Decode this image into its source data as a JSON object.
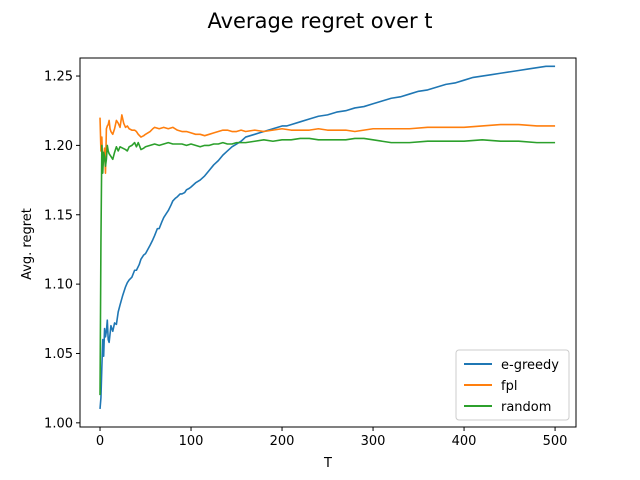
{
  "chart_data": {
    "type": "line",
    "title": "Average regret over t",
    "xlabel": "T",
    "ylabel": "Avg. regret",
    "xlim": [
      -22,
      523
    ],
    "ylim": [
      0.997,
      1.263
    ],
    "xticks": [
      0,
      100,
      200,
      300,
      400,
      500
    ],
    "xtick_labels": [
      "0",
      "100",
      "200",
      "300",
      "400",
      "500"
    ],
    "yticks": [
      1.0,
      1.05,
      1.1,
      1.15,
      1.2,
      1.25
    ],
    "ytick_labels": [
      "1.00",
      "1.05",
      "1.10",
      "1.15",
      "1.20",
      "1.25"
    ],
    "grid": false,
    "legend_position": "lower-right",
    "series": [
      {
        "name": "e-greedy",
        "color": "#1f77b4",
        "points": [
          [
            0,
            1.01
          ],
          [
            1,
            1.018
          ],
          [
            2,
            1.04
          ],
          [
            3,
            1.06
          ],
          [
            4,
            1.048
          ],
          [
            5,
            1.068
          ],
          [
            6,
            1.062
          ],
          [
            7,
            1.066
          ],
          [
            8,
            1.074
          ],
          [
            9,
            1.06
          ],
          [
            10,
            1.058
          ],
          [
            12,
            1.07
          ],
          [
            14,
            1.066
          ],
          [
            16,
            1.072
          ],
          [
            18,
            1.071
          ],
          [
            20,
            1.08
          ],
          [
            22,
            1.085
          ],
          [
            25,
            1.092
          ],
          [
            28,
            1.098
          ],
          [
            30,
            1.101
          ],
          [
            32,
            1.103
          ],
          [
            35,
            1.105
          ],
          [
            38,
            1.11
          ],
          [
            40,
            1.11
          ],
          [
            43,
            1.114
          ],
          [
            45,
            1.118
          ],
          [
            48,
            1.121
          ],
          [
            50,
            1.122
          ],
          [
            55,
            1.128
          ],
          [
            58,
            1.132
          ],
          [
            60,
            1.135
          ],
          [
            63,
            1.14
          ],
          [
            65,
            1.14
          ],
          [
            68,
            1.145
          ],
          [
            70,
            1.148
          ],
          [
            73,
            1.151
          ],
          [
            75,
            1.153
          ],
          [
            78,
            1.157
          ],
          [
            80,
            1.16
          ],
          [
            83,
            1.162
          ],
          [
            85,
            1.163
          ],
          [
            88,
            1.165
          ],
          [
            90,
            1.165
          ],
          [
            93,
            1.166
          ],
          [
            95,
            1.168
          ],
          [
            98,
            1.169
          ],
          [
            100,
            1.17
          ],
          [
            105,
            1.173
          ],
          [
            110,
            1.175
          ],
          [
            115,
            1.178
          ],
          [
            120,
            1.182
          ],
          [
            125,
            1.186
          ],
          [
            130,
            1.189
          ],
          [
            135,
            1.193
          ],
          [
            140,
            1.196
          ],
          [
            145,
            1.199
          ],
          [
            150,
            1.201
          ],
          [
            155,
            1.203
          ],
          [
            160,
            1.206
          ],
          [
            165,
            1.207
          ],
          [
            170,
            1.208
          ],
          [
            175,
            1.209
          ],
          [
            180,
            1.21
          ],
          [
            185,
            1.211
          ],
          [
            190,
            1.212
          ],
          [
            195,
            1.213
          ],
          [
            200,
            1.214
          ],
          [
            205,
            1.214
          ],
          [
            210,
            1.215
          ],
          [
            220,
            1.217
          ],
          [
            230,
            1.219
          ],
          [
            240,
            1.221
          ],
          [
            250,
            1.222
          ],
          [
            260,
            1.224
          ],
          [
            270,
            1.225
          ],
          [
            280,
            1.227
          ],
          [
            290,
            1.228
          ],
          [
            300,
            1.23
          ],
          [
            310,
            1.232
          ],
          [
            320,
            1.234
          ],
          [
            330,
            1.235
          ],
          [
            340,
            1.237
          ],
          [
            350,
            1.239
          ],
          [
            360,
            1.24
          ],
          [
            370,
            1.242
          ],
          [
            380,
            1.244
          ],
          [
            390,
            1.245
          ],
          [
            400,
            1.247
          ],
          [
            410,
            1.249
          ],
          [
            420,
            1.25
          ],
          [
            430,
            1.251
          ],
          [
            440,
            1.252
          ],
          [
            450,
            1.253
          ],
          [
            460,
            1.254
          ],
          [
            470,
            1.255
          ],
          [
            480,
            1.256
          ],
          [
            490,
            1.257
          ],
          [
            500,
            1.257
          ]
        ]
      },
      {
        "name": "fpl",
        "color": "#ff7f0e",
        "points": [
          [
            0,
            1.22
          ],
          [
            1,
            1.196
          ],
          [
            2,
            1.206
          ],
          [
            3,
            1.185
          ],
          [
            4,
            1.19
          ],
          [
            5,
            1.198
          ],
          [
            6,
            1.18
          ],
          [
            7,
            1.212
          ],
          [
            8,
            1.214
          ],
          [
            9,
            1.215
          ],
          [
            10,
            1.218
          ],
          [
            11,
            1.212
          ],
          [
            12,
            1.21
          ],
          [
            14,
            1.208
          ],
          [
            16,
            1.212
          ],
          [
            18,
            1.218
          ],
          [
            20,
            1.216
          ],
          [
            22,
            1.213
          ],
          [
            24,
            1.222
          ],
          [
            26,
            1.216
          ],
          [
            28,
            1.213
          ],
          [
            30,
            1.214
          ],
          [
            32,
            1.212
          ],
          [
            35,
            1.211
          ],
          [
            38,
            1.211
          ],
          [
            40,
            1.21
          ],
          [
            42,
            1.208
          ],
          [
            45,
            1.206
          ],
          [
            48,
            1.207
          ],
          [
            50,
            1.208
          ],
          [
            55,
            1.21
          ],
          [
            58,
            1.212
          ],
          [
            60,
            1.213
          ],
          [
            65,
            1.212
          ],
          [
            70,
            1.213
          ],
          [
            75,
            1.212
          ],
          [
            80,
            1.213
          ],
          [
            85,
            1.211
          ],
          [
            90,
            1.21
          ],
          [
            95,
            1.21
          ],
          [
            100,
            1.209
          ],
          [
            105,
            1.208
          ],
          [
            110,
            1.208
          ],
          [
            115,
            1.207
          ],
          [
            120,
            1.208
          ],
          [
            125,
            1.209
          ],
          [
            130,
            1.21
          ],
          [
            135,
            1.211
          ],
          [
            140,
            1.211
          ],
          [
            145,
            1.21
          ],
          [
            150,
            1.21
          ],
          [
            155,
            1.211
          ],
          [
            160,
            1.21
          ],
          [
            170,
            1.211
          ],
          [
            180,
            1.21
          ],
          [
            190,
            1.211
          ],
          [
            200,
            1.212
          ],
          [
            210,
            1.211
          ],
          [
            220,
            1.211
          ],
          [
            230,
            1.211
          ],
          [
            240,
            1.212
          ],
          [
            250,
            1.211
          ],
          [
            260,
            1.211
          ],
          [
            270,
            1.211
          ],
          [
            280,
            1.21
          ],
          [
            290,
            1.211
          ],
          [
            300,
            1.212
          ],
          [
            320,
            1.212
          ],
          [
            340,
            1.212
          ],
          [
            360,
            1.213
          ],
          [
            380,
            1.213
          ],
          [
            400,
            1.213
          ],
          [
            420,
            1.214
          ],
          [
            440,
            1.215
          ],
          [
            460,
            1.215
          ],
          [
            480,
            1.214
          ],
          [
            500,
            1.214
          ]
        ]
      },
      {
        "name": "random",
        "color": "#2ca02c",
        "points": [
          [
            0,
            1.02
          ],
          [
            1,
            1.13
          ],
          [
            2,
            1.2
          ],
          [
            3,
            1.18
          ],
          [
            4,
            1.195
          ],
          [
            5,
            1.192
          ],
          [
            6,
            1.185
          ],
          [
            7,
            1.19
          ],
          [
            8,
            1.2
          ],
          [
            9,
            1.196
          ],
          [
            10,
            1.194
          ],
          [
            12,
            1.192
          ],
          [
            14,
            1.19
          ],
          [
            16,
            1.195
          ],
          [
            18,
            1.199
          ],
          [
            20,
            1.196
          ],
          [
            22,
            1.199
          ],
          [
            25,
            1.198
          ],
          [
            28,
            1.197
          ],
          [
            30,
            1.196
          ],
          [
            32,
            1.199
          ],
          [
            35,
            1.2
          ],
          [
            38,
            1.202
          ],
          [
            40,
            1.199
          ],
          [
            42,
            1.202
          ],
          [
            45,
            1.197
          ],
          [
            48,
            1.198
          ],
          [
            50,
            1.199
          ],
          [
            55,
            1.2
          ],
          [
            60,
            1.201
          ],
          [
            65,
            1.2
          ],
          [
            70,
            1.201
          ],
          [
            75,
            1.202
          ],
          [
            80,
            1.201
          ],
          [
            85,
            1.201
          ],
          [
            90,
            1.201
          ],
          [
            95,
            1.2
          ],
          [
            100,
            1.201
          ],
          [
            105,
            1.2
          ],
          [
            110,
            1.199
          ],
          [
            115,
            1.2
          ],
          [
            120,
            1.2
          ],
          [
            125,
            1.201
          ],
          [
            130,
            1.201
          ],
          [
            135,
            1.202
          ],
          [
            140,
            1.201
          ],
          [
            145,
            1.201
          ],
          [
            150,
            1.202
          ],
          [
            160,
            1.202
          ],
          [
            170,
            1.203
          ],
          [
            180,
            1.204
          ],
          [
            190,
            1.203
          ],
          [
            200,
            1.204
          ],
          [
            210,
            1.204
          ],
          [
            220,
            1.205
          ],
          [
            230,
            1.205
          ],
          [
            240,
            1.204
          ],
          [
            250,
            1.204
          ],
          [
            260,
            1.204
          ],
          [
            270,
            1.204
          ],
          [
            280,
            1.205
          ],
          [
            290,
            1.205
          ],
          [
            300,
            1.204
          ],
          [
            310,
            1.203
          ],
          [
            320,
            1.202
          ],
          [
            340,
            1.202
          ],
          [
            360,
            1.203
          ],
          [
            380,
            1.203
          ],
          [
            400,
            1.203
          ],
          [
            420,
            1.204
          ],
          [
            440,
            1.203
          ],
          [
            460,
            1.203
          ],
          [
            480,
            1.202
          ],
          [
            500,
            1.202
          ]
        ]
      }
    ]
  }
}
